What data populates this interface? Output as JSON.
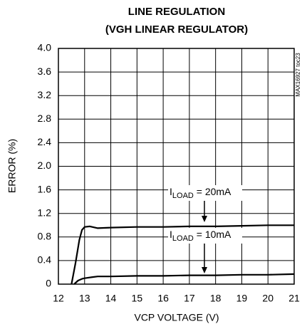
{
  "chart_data": {
    "type": "line",
    "title": [
      "LINE REGULATION",
      "(VGH LINEAR REGULATOR)"
    ],
    "x_label": "VCP VOLTAGE (V)",
    "y_label": "ERROR (%)",
    "side_note": "MAX16927 toc23",
    "xlim": [
      12,
      21
    ],
    "xticks": [
      12,
      13,
      14,
      15,
      16,
      17,
      18,
      19,
      20,
      21
    ],
    "ylim": [
      0,
      4
    ],
    "yticks": [
      0,
      0.4,
      0.8,
      1.2,
      1.6,
      {
        "value": 2,
        "label": "2.0"
      },
      2.4,
      2.8,
      3.2,
      3.6,
      {
        "value": 4,
        "label": "4.0"
      }
    ],
    "grid": true,
    "series": [
      {
        "name": "ILOAD = 20mA",
        "color": "#000000",
        "x": [
          12.5,
          12.65,
          12.8,
          12.9,
          13.0,
          13.2,
          13.5,
          14,
          15,
          16,
          17,
          18,
          19,
          20,
          21
        ],
        "values": [
          0,
          0.35,
          0.75,
          0.92,
          0.97,
          0.98,
          0.95,
          0.96,
          0.97,
          0.97,
          0.98,
          0.98,
          0.99,
          1.0,
          1.0
        ]
      },
      {
        "name": "ILOAD = 10mA",
        "color": "#000000",
        "x": [
          12.6,
          12.75,
          12.9,
          13.0,
          13.3,
          13.5,
          14,
          15,
          16,
          17,
          18,
          19,
          20,
          21
        ],
        "values": [
          0,
          0.06,
          0.09,
          0.1,
          0.12,
          0.13,
          0.13,
          0.14,
          0.14,
          0.15,
          0.15,
          0.16,
          0.16,
          0.17
        ]
      }
    ],
    "annotations": [
      {
        "symbol": "I",
        "subscript": "LOAD",
        "text": " = 20mA"
      },
      {
        "symbol": "I",
        "subscript": "LOAD",
        "text": " = 10mA"
      }
    ]
  }
}
